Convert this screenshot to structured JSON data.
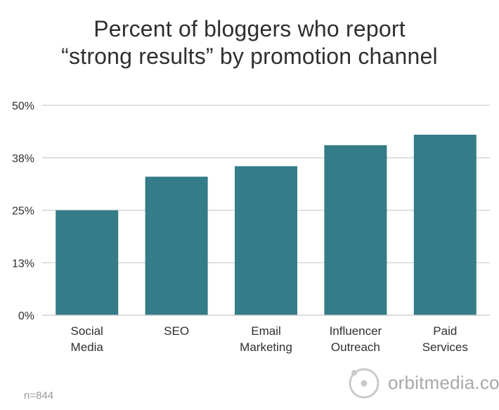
{
  "title_lines": [
    "Percent of bloggers who report",
    "“strong results” by promotion channel"
  ],
  "note": "n=844",
  "logo_text": "orbitmedia.com",
  "colors": {
    "bar": "#337c88",
    "grid": "#cfcfcf",
    "text": "#2f2f2f"
  },
  "chart_data": {
    "type": "bar",
    "title": "Percent of bloggers who report “strong results” by promotion channel",
    "categories": [
      [
        "Social",
        "Media"
      ],
      [
        "SEO"
      ],
      [
        "Email",
        "Marketing"
      ],
      [
        "Influencer",
        "Outreach"
      ],
      [
        "Paid",
        "Services"
      ]
    ],
    "values": [
      25,
      33,
      35.5,
      40.5,
      43
    ],
    "ylim": [
      0,
      50
    ],
    "yticks": [
      {
        "value": 0,
        "label": "0%"
      },
      {
        "value": 12.5,
        "label": "13%"
      },
      {
        "value": 25,
        "label": "25%"
      },
      {
        "value": 37.5,
        "label": "38%"
      },
      {
        "value": 50,
        "label": "50%"
      }
    ],
    "xlabel": "",
    "ylabel": "",
    "grid": true
  }
}
